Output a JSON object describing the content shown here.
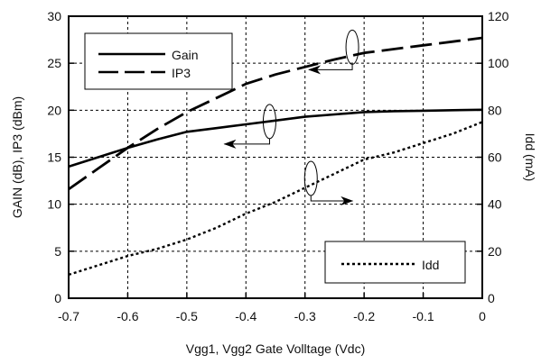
{
  "chart_data": {
    "type": "line",
    "title": "",
    "xlabel": "Vgg1, Vgg2  Gate Volltage (Vdc)",
    "ylabel_left": "GAIN (dB), IP3 (dBm)",
    "ylabel_right": "Idd (mA)",
    "xlim": [
      -0.7,
      0
    ],
    "ylim_left": [
      0,
      30
    ],
    "ylim_right": [
      0,
      120
    ],
    "x_ticks": [
      "-0.7",
      "-0.6",
      "-0.5",
      "-0.4",
      "-0.3",
      "-0.2",
      "-0.1",
      "0"
    ],
    "y_left_ticks": [
      "0",
      "5",
      "10",
      "15",
      "20",
      "25",
      "30"
    ],
    "y_right_ticks": [
      "0",
      "20",
      "40",
      "60",
      "80",
      "100",
      "120"
    ],
    "grid": true,
    "legend_top": {
      "placement": "top-left",
      "entries": [
        {
          "name": "Gain",
          "style": "solid"
        },
        {
          "name": "IP3",
          "style": "dashed"
        }
      ]
    },
    "legend_bottom": {
      "placement": "bottom-right",
      "entries": [
        {
          "name": "Idd",
          "style": "dotted"
        }
      ]
    },
    "series": [
      {
        "name": "Gain",
        "axis": "left",
        "style": "solid",
        "x": [
          -0.7,
          -0.65,
          -0.6,
          -0.55,
          -0.5,
          -0.45,
          -0.4,
          -0.35,
          -0.3,
          -0.25,
          -0.2,
          -0.15,
          -0.1,
          -0.05,
          0
        ],
        "y": [
          14.0,
          15.0,
          16.0,
          16.9,
          17.7,
          18.1,
          18.5,
          18.9,
          19.3,
          19.55,
          19.8,
          19.9,
          19.95,
          20.0,
          20.05
        ]
      },
      {
        "name": "IP3",
        "axis": "left",
        "style": "dashed",
        "x": [
          -0.7,
          -0.65,
          -0.6,
          -0.55,
          -0.5,
          -0.45,
          -0.4,
          -0.35,
          -0.3,
          -0.25,
          -0.2,
          -0.15,
          -0.1,
          -0.05,
          0
        ],
        "y": [
          11.6,
          13.8,
          16.0,
          18.0,
          19.8,
          21.3,
          22.8,
          23.8,
          24.6,
          25.4,
          26.1,
          26.5,
          26.9,
          27.3,
          27.7
        ]
      },
      {
        "name": "Idd",
        "axis": "right",
        "style": "dotted",
        "x": [
          -0.7,
          -0.65,
          -0.6,
          -0.55,
          -0.5,
          -0.45,
          -0.4,
          -0.35,
          -0.3,
          -0.25,
          -0.2,
          -0.15,
          -0.1,
          -0.05,
          0
        ],
        "y": [
          10,
          14,
          18,
          21,
          25,
          30,
          36,
          41,
          47,
          53,
          59,
          62,
          66,
          70,
          75
        ]
      }
    ]
  }
}
